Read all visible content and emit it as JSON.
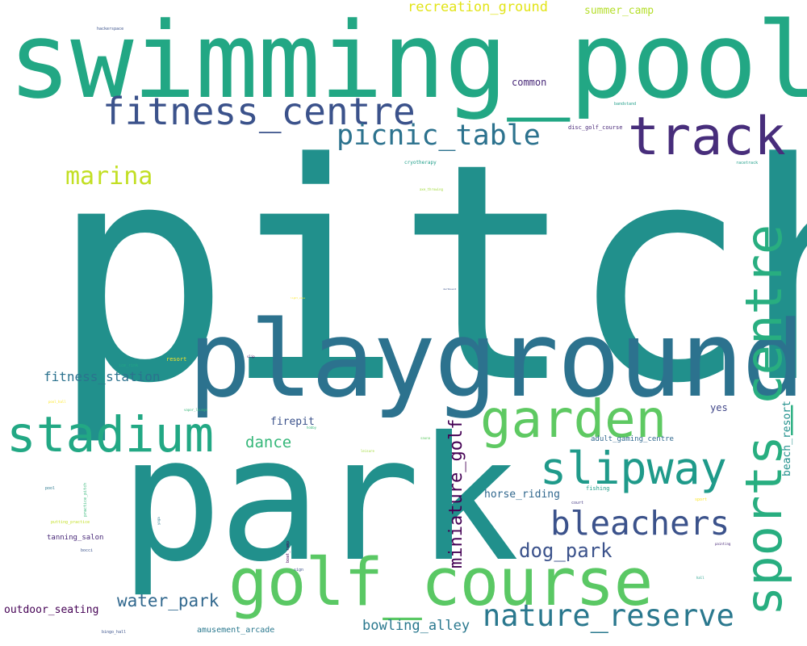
{
  "words": [
    {
      "text": "pitch",
      "color": "#21908c"
    },
    {
      "text": "swimming_pool",
      "color": "#22a784"
    },
    {
      "text": "park",
      "color": "#21908c"
    },
    {
      "text": "playground",
      "color": "#2c728e"
    },
    {
      "text": "golf_course",
      "color": "#5ac864"
    },
    {
      "text": "track",
      "color": "#472d7b"
    },
    {
      "text": "fitness_centre",
      "color": "#3b528b"
    },
    {
      "text": "sports_centre",
      "color": "#28ae80"
    },
    {
      "text": "garden",
      "color": "#5ec962"
    },
    {
      "text": "stadium",
      "color": "#22a884"
    },
    {
      "text": "slipway",
      "color": "#1f9a8a"
    },
    {
      "text": "bleachers",
      "color": "#3b528b"
    },
    {
      "text": "nature_reserve",
      "color": "#2a788e"
    },
    {
      "text": "picnic_table",
      "color": "#2c728e"
    },
    {
      "text": "marina",
      "color": "#c2df23"
    },
    {
      "text": "miniature_golf",
      "color": "#440154"
    },
    {
      "text": "dog_park",
      "color": "#3b528b"
    },
    {
      "text": "water_park",
      "color": "#31688e"
    },
    {
      "text": "recreation_ground",
      "color": "#e2e418"
    },
    {
      "text": "bowling_alley",
      "color": "#2a788e"
    },
    {
      "text": "fitness_station",
      "color": "#2c728e"
    },
    {
      "text": "dance",
      "color": "#35b779"
    },
    {
      "text": "summer_camp",
      "color": "#b5de2b"
    },
    {
      "text": "beach_resort",
      "color": "#21908c"
    },
    {
      "text": "horse_riding",
      "color": "#31688e"
    },
    {
      "text": "outdoor_seating",
      "color": "#440154"
    },
    {
      "text": "firepit",
      "color": "#3b528b"
    },
    {
      "text": "common",
      "color": "#482878"
    },
    {
      "text": "amusement_arcade",
      "color": "#2a788e"
    },
    {
      "text": "yes",
      "color": "#404688"
    },
    {
      "text": "adult_gaming_centre",
      "color": "#31688e"
    },
    {
      "text": "tanning_salon",
      "color": "#482878"
    },
    {
      "text": "disc_golf_course",
      "color": "#482878"
    },
    {
      "text": "fishing",
      "color": "#1f9e89"
    },
    {
      "text": "cryotherapy",
      "color": "#1f9e89"
    },
    {
      "text": "resort",
      "color": "#fde725"
    },
    {
      "text": "hackerspace",
      "color": "#3b528b"
    },
    {
      "text": "bandstand",
      "color": "#1f9e89"
    },
    {
      "text": "racetrack",
      "color": "#1f9e89"
    },
    {
      "text": "sport",
      "color": "#fde725"
    },
    {
      "text": "ice_rink",
      "color": "#22a884"
    },
    {
      "text": "court",
      "color": "#443983"
    },
    {
      "text": "pool",
      "color": "#2a788e"
    },
    {
      "text": "putting_practice",
      "color": "#c2df23"
    },
    {
      "text": "practice_pitch",
      "color": "#35b779"
    },
    {
      "text": "sign",
      "color": "#3b528b"
    },
    {
      "text": "boat_ramp",
      "color": "#440154"
    },
    {
      "text": "bocci",
      "color": "#3b528b"
    },
    {
      "text": "bingo_hall",
      "color": "#3b528b"
    },
    {
      "text": "vapor_lounge",
      "color": "#35b779"
    },
    {
      "text": "yoga",
      "color": "#2a788e"
    },
    {
      "text": "slip",
      "color": "#440154"
    },
    {
      "text": "painting",
      "color": "#482878"
    },
    {
      "text": "hall",
      "color": "#1f9e89"
    },
    {
      "text": "pool_hall",
      "color": "#fde725"
    },
    {
      "text": "axe_throwing",
      "color": "#a0da39"
    },
    {
      "text": "sauna",
      "color": "#5ec962"
    },
    {
      "text": "leisure",
      "color": "#a0da39"
    },
    {
      "text": "hobby",
      "color": "#35b779"
    },
    {
      "text": "dartboard",
      "color": "#3b528b"
    },
    {
      "text": "light_zone",
      "color": "#fde725"
    }
  ]
}
